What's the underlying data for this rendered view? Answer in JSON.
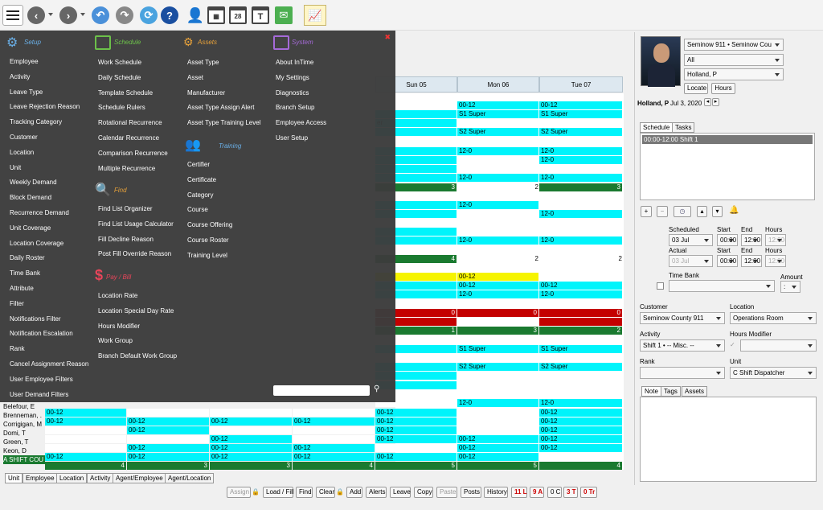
{
  "toolbar": {
    "icons": [
      "menu-icon",
      "back-icon",
      "forward-icon",
      "undo-icon",
      "redo-icon",
      "refresh-icon",
      "help-icon",
      "person-icon",
      "calendar-icon",
      "calendar-28-icon",
      "calendar-t-icon",
      "email-icon",
      "chart-icon"
    ],
    "cal28": "28",
    "calT": "T",
    "help": "?"
  },
  "grid": {
    "days": [
      "Sun 05",
      "Mon 06",
      "Tue 07"
    ],
    "names": [
      "Belefour, E",
      "Brenneman, .",
      "Corrigigan, M",
      "Domi, T",
      "Green, T",
      "Keon, D",
      "A SHIFT COU"
    ],
    "cells": {
      "r1": [
        "00-12",
        "00-12"
      ],
      "r2": [
        "S1 Super",
        "S1 Super"
      ],
      "r3": [
        "er",
        "S2 Super",
        "S2 Super"
      ],
      "b1": [
        "12-0",
        "12-0"
      ],
      "b2": [
        "12-0"
      ],
      "b3": [
        "12-0",
        "12-0"
      ],
      "b3tot": [
        "3",
        "2",
        "3"
      ],
      "c1": [
        "12-0"
      ],
      "c2": [
        "12-0"
      ],
      "c3": [
        "12-0",
        "12-0"
      ],
      "c3tot": [
        "4",
        "2",
        "2"
      ],
      "d1": [
        "00-12"
      ],
      "d2": [
        "00-12",
        "00-12"
      ],
      "d3": [
        "12-0",
        "12-0"
      ],
      "d4": [
        "0",
        "0",
        "0"
      ],
      "d5": [
        "1",
        "3",
        "2"
      ],
      "e1": [
        "S1 Super",
        "S1 Super"
      ],
      "e2": [
        "S2 Super",
        "S2 Super"
      ],
      "e3": [
        "12-0",
        "12-0"
      ],
      "f1": [
        "12-0",
        "12-0"
      ],
      "f2": [
        "00-12",
        "00-12"
      ],
      "bel": [
        "00-12",
        "00-12",
        "00-12"
      ],
      "bren": [
        "00-12",
        "00-12",
        "00-12",
        "00-12",
        "00-12",
        "00-12"
      ],
      "corr": [
        "00-12",
        "00-12",
        "00-12"
      ],
      "domi": [
        "00-12",
        "00-12",
        "00-12",
        "00-12"
      ],
      "green": [
        "00-12",
        "00-12",
        "00-12",
        "00-12",
        "00-12"
      ],
      "keon": [
        "00-12",
        "00-12",
        "00-12",
        "00-12",
        "00-12",
        "00-12"
      ],
      "tot": [
        "4",
        "3",
        "3",
        "4",
        "5",
        "5",
        "4"
      ]
    }
  },
  "menu": {
    "setup": {
      "title": "Setup",
      "items": [
        "Employee",
        "Activity",
        "Leave Type",
        "Leave Rejection Reason",
        "Tracking Category",
        "Customer",
        "Location",
        "Unit",
        "Weekly Demand",
        "Block Demand",
        "Recurrence Demand",
        "Unit Coverage",
        "Location Coverage",
        "Daily Roster",
        "Time Bank",
        "Attribute",
        "Filter",
        "Notifications Filter",
        "Notification Escalation",
        "Rank",
        "Cancel Assignment Reason",
        "User Employee Filters",
        "User Demand Filters"
      ]
    },
    "schedule": {
      "title": "Schedule",
      "items": [
        "Work Schedule",
        "Daily Schedule",
        "Template Schedule",
        "Schedule Rulers",
        "Rotational Recurrence",
        "Calendar Recurrence",
        "Comparison Recurrence",
        "Multiple Recurrence"
      ]
    },
    "find": {
      "title": "Find",
      "items": [
        "Find List Organizer",
        "Find List Usage Calculator",
        "Fill Decline Reason",
        "Post Fill Override Reason"
      ]
    },
    "paybill": {
      "title": "Pay / Bill",
      "items": [
        "Location Rate",
        "Location Special Day Rate",
        "Hours Modifier",
        "Work Group",
        "Branch Default Work Group"
      ]
    },
    "assets": {
      "title": "Assets",
      "items": [
        "Asset Type",
        "Asset",
        "Manufacturer",
        "Asset Type Assign Alert",
        "Asset Type Training Level"
      ]
    },
    "training": {
      "title": "Training",
      "items": [
        "Certifier",
        "Certificate",
        "Category",
        "Course",
        "Course Offering",
        "Course Roster",
        "Training Level"
      ]
    },
    "system": {
      "title": "System",
      "items": [
        "About InTime",
        "My Settings",
        "Diagnostics",
        "Branch Setup",
        "Employee Access",
        "User Setup"
      ]
    },
    "search_placeholder": ""
  },
  "bottom": {
    "tabs": [
      "Unit",
      "Employee",
      "Location",
      "Activity",
      "Agent/Employee",
      "Agent/Location"
    ],
    "buttons": [
      "Assign",
      "Load / Fill",
      "Find",
      "Clear",
      "Add",
      "Alerts",
      "Leave",
      "Copy",
      "Paste",
      "Posts",
      "History",
      "11 L",
      "9 A",
      "0 C",
      "3 T",
      "0 Tr"
    ]
  },
  "right": {
    "agency": "Seminow 911  •  Seminow Cou",
    "filter": "All",
    "person": "Holland, P",
    "locate": "Locate",
    "hours": "Hours",
    "name": "Holland, P",
    "date": "Jul 3, 2020",
    "tabs": [
      "Schedule",
      "Tasks"
    ],
    "schedule_item": "00:00-12:00 Shift 1",
    "scheduled_label": "Scheduled",
    "start_label": "Start",
    "end_label": "End",
    "hours_label": "Hours",
    "scheduled_date": "03 Jul",
    "start": "00:00",
    "end": "12:00",
    "hours_val": "12:00",
    "actual_label": "Actual",
    "actual_date": "03 Jul",
    "astart": "00:00",
    "aend": "12:00",
    "ahours": "12:00",
    "timebank_label": "Time Bank",
    "amount_label": "Amount",
    "amount": ":",
    "customer_label": "Customer",
    "customer": "Seminow County 911",
    "location_label": "Location",
    "location": "Operations Room",
    "activity_label": "Activity",
    "activity": "Shift 1  •  -- Misc. --",
    "hoursmod_label": "Hours Modifier",
    "rank_label": "Rank",
    "unit_label": "Unit",
    "unit": "C Shift Dispatcher",
    "note_tabs": [
      "Note",
      "Tags",
      "Assets"
    ]
  }
}
